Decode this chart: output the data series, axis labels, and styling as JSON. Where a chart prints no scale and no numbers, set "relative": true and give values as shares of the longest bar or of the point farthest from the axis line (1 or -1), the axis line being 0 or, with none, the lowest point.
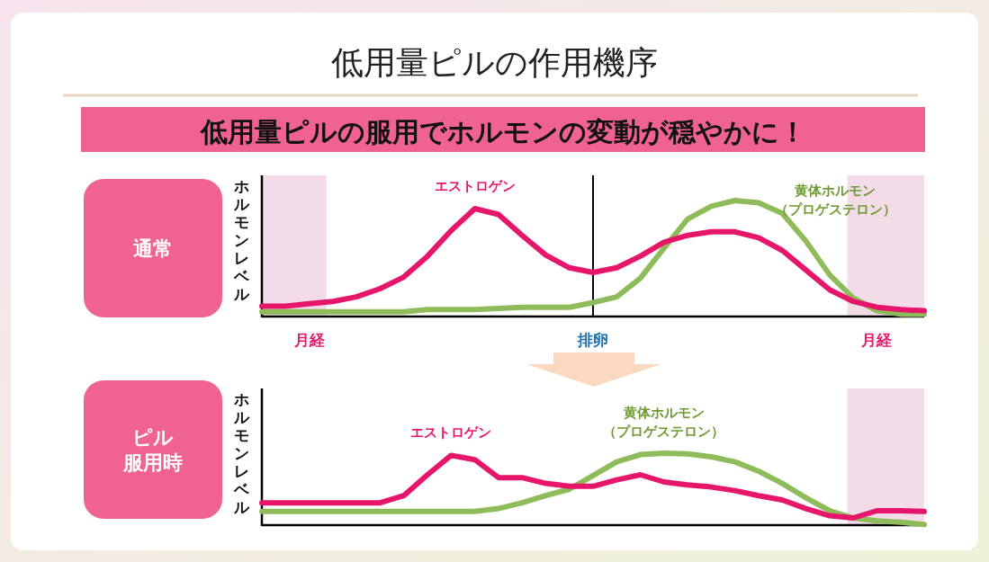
{
  "chart_data": [
    {
      "type": "line",
      "relative": true,
      "title": "低用量ピルの作用機序",
      "subtitle": "低用量ピルの服用でホルモンの変動が穏やかに！",
      "ylabel": "ホルモンレベル",
      "annotations": [
        "通常"
      ],
      "tick_labels": "x",
      "categories": [
        null,
        null,
        "月経",
        null,
        null,
        null,
        null,
        null,
        null,
        null,
        null,
        null,
        null,
        null,
        "排卵",
        null,
        null,
        null,
        null,
        null,
        null,
        null,
        null,
        null,
        null,
        null,
        "月経",
        null,
        null
      ],
      "series": [
        {
          "name": "エストロゲン",
          "color": "#e6176b",
          "values": [
            0.09,
            0.09,
            0.11,
            0.13,
            0.17,
            0.24,
            0.34,
            0.52,
            0.74,
            0.93,
            0.88,
            0.7,
            0.53,
            0.42,
            0.38,
            0.42,
            0.52,
            0.64,
            0.7,
            0.73,
            0.73,
            0.68,
            0.57,
            0.4,
            0.23,
            0.13,
            0.08,
            0.06,
            0.05
          ]
        },
        {
          "name": "黄体ホルモン（プロゲステロン）",
          "color": "#8fbc5a",
          "values": [
            0.04,
            0.04,
            0.04,
            0.04,
            0.04,
            0.04,
            0.04,
            0.06,
            0.06,
            0.06,
            0.07,
            0.08,
            0.08,
            0.08,
            0.12,
            0.17,
            0.33,
            0.59,
            0.84,
            0.95,
            1.0,
            0.98,
            0.89,
            0.65,
            0.36,
            0.16,
            0.05,
            0.02,
            0.02
          ]
        }
      ],
      "ref_lines": [
        {
          "axis": "x",
          "value": "排卵",
          "color": "#000000"
        }
      ]
    },
    {
      "type": "line",
      "relative": true,
      "ylabel": "ホルモンレベル",
      "annotations": [
        "ピル",
        "服用時"
      ],
      "tick_labels": false,
      "categories": [
        null,
        null,
        null,
        null,
        null,
        null,
        null,
        null,
        null,
        null,
        null,
        null,
        null,
        null,
        null,
        null,
        null,
        null,
        null,
        null,
        null,
        null,
        null,
        null,
        null,
        null,
        null,
        null,
        null
      ],
      "series": [
        {
          "name": "エストロゲン",
          "color": "#e6176b",
          "values": [
            0.31,
            0.31,
            0.31,
            0.31,
            0.31,
            0.31,
            0.41,
            0.7,
            0.97,
            0.91,
            0.66,
            0.66,
            0.58,
            0.54,
            0.54,
            0.63,
            0.7,
            0.6,
            0.56,
            0.53,
            0.48,
            0.41,
            0.35,
            0.23,
            0.13,
            0.1,
            0.2,
            0.2,
            0.19
          ]
        },
        {
          "name": "黄体ホルモン（プロゲステロン）",
          "color": "#8fbc5a",
          "values": [
            0.19,
            0.19,
            0.19,
            0.19,
            0.19,
            0.19,
            0.19,
            0.19,
            0.19,
            0.19,
            0.23,
            0.31,
            0.41,
            0.5,
            0.69,
            0.88,
            0.98,
            1.0,
            0.99,
            0.95,
            0.88,
            0.75,
            0.58,
            0.38,
            0.2,
            0.1,
            0.06,
            0.04,
            0.01
          ]
        }
      ]
    }
  ]
}
